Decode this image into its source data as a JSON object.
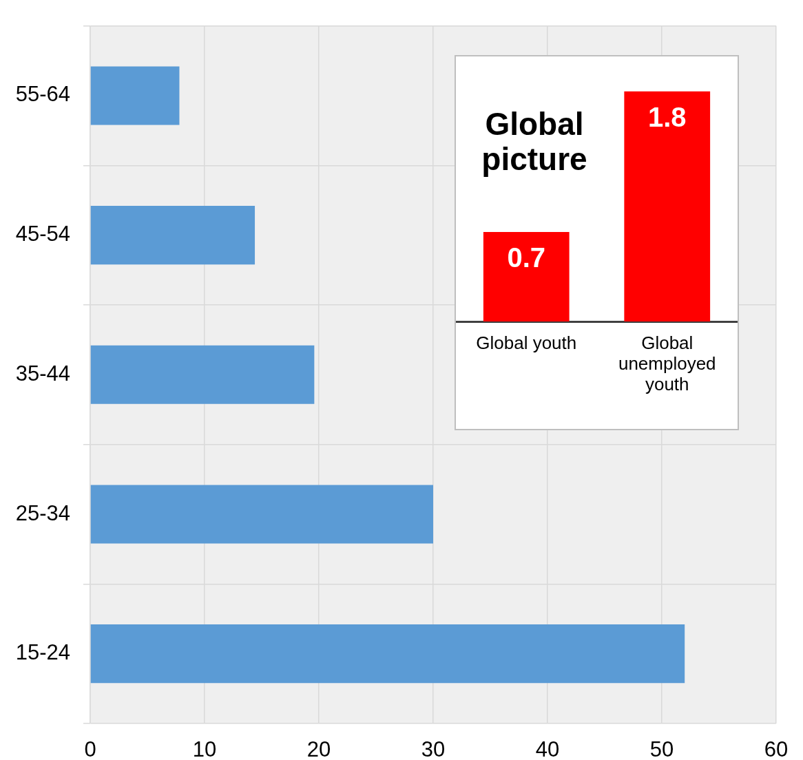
{
  "chart_data": [
    {
      "type": "bar",
      "orientation": "horizontal",
      "categories": [
        "55-64",
        "45-54",
        "35-44",
        "25-34",
        "15-24"
      ],
      "values": [
        7.8,
        14.4,
        19.6,
        30,
        52
      ],
      "color": "#5b9bd5",
      "xlim": [
        0,
        60
      ],
      "xticks": [
        0,
        10,
        20,
        30,
        40,
        50,
        60
      ],
      "grid": true
    },
    {
      "type": "bar",
      "title": "Global picture",
      "categories": [
        "Global youth",
        "Global unemployed youth"
      ],
      "values": [
        0.7,
        1.8
      ],
      "color": "#ff0000",
      "data_labels": true
    }
  ]
}
